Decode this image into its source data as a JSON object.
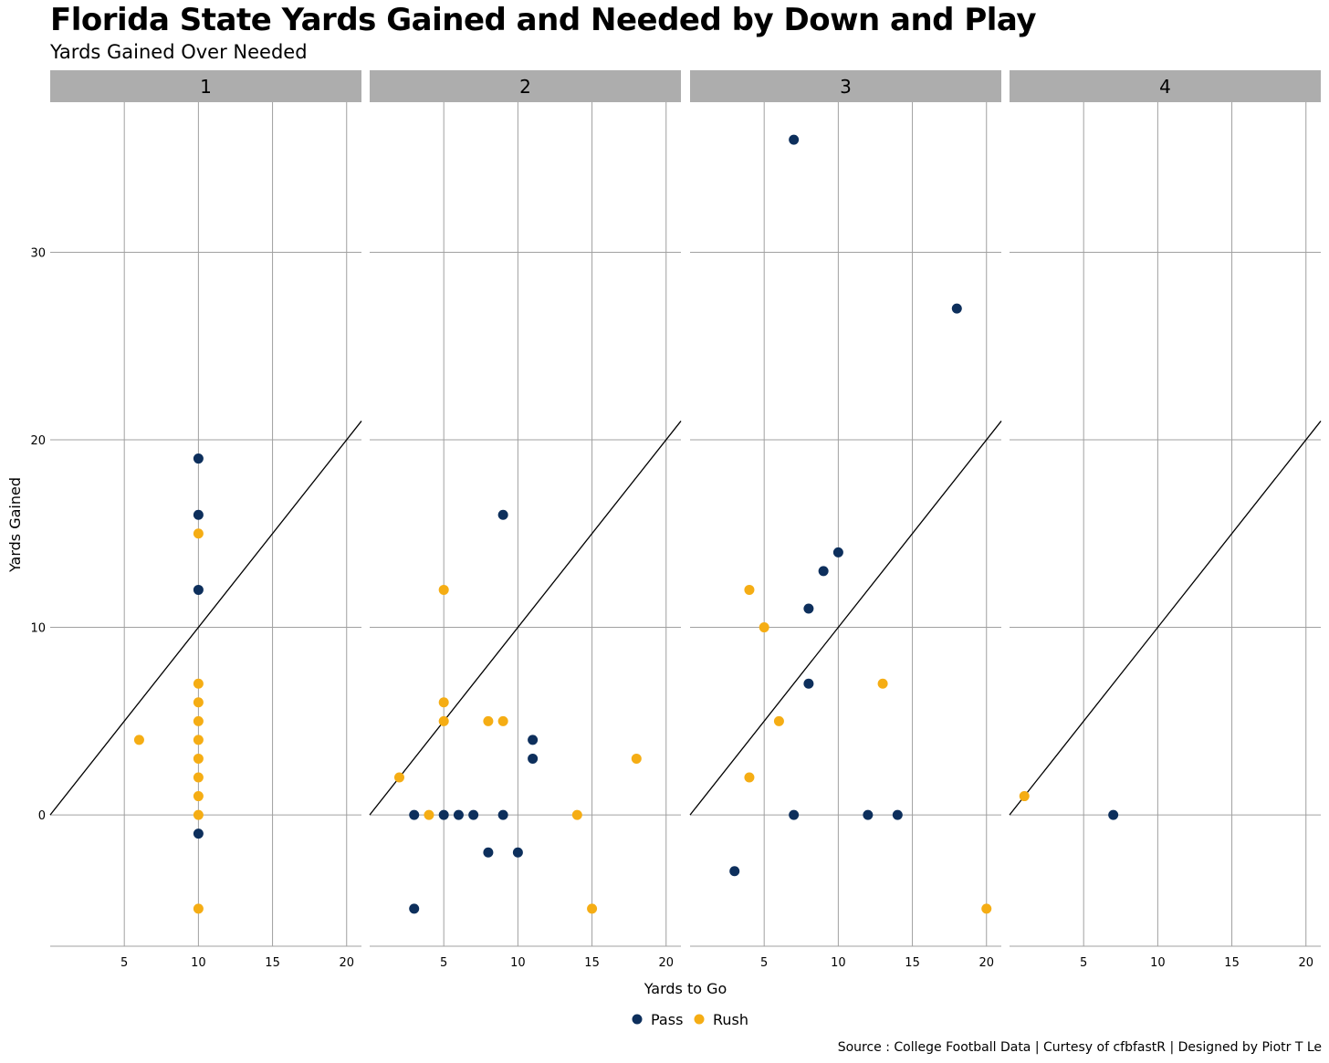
{
  "title": "Florida State Yards Gained and Needed by Down and Play",
  "subtitle": "Yards Gained Over Needed",
  "caption": "Source : College Football Data | Curtesy of cfbfastR | Designed by Piotr T Le",
  "chart_data": {
    "type": "scatter",
    "xlabel": "Yards to Go",
    "ylabel": "Yards Gained",
    "xlim": [
      0,
      21
    ],
    "ylim": [
      -7,
      38
    ],
    "x_ticks": [
      5,
      10,
      15,
      20
    ],
    "y_ticks": [
      0,
      10,
      20,
      30
    ],
    "grid": true,
    "reference_line": "y = x",
    "legend_position": "bottom",
    "colors": {
      "Pass": "#0d2f5c",
      "Rush": "#f5ad14"
    },
    "series": [
      {
        "name": "Pass",
        "color": "#0d2f5c"
      },
      {
        "name": "Rush",
        "color": "#f5ad14"
      }
    ],
    "panels": [
      {
        "label": "1",
        "points": [
          {
            "x": 10,
            "y": 19,
            "play": "Pass"
          },
          {
            "x": 10,
            "y": 16,
            "play": "Pass"
          },
          {
            "x": 10,
            "y": 12,
            "play": "Pass"
          },
          {
            "x": 10,
            "y": -1,
            "play": "Pass"
          },
          {
            "x": 10,
            "y": 15,
            "play": "Rush"
          },
          {
            "x": 10,
            "y": 7,
            "play": "Rush"
          },
          {
            "x": 10,
            "y": 6,
            "play": "Rush"
          },
          {
            "x": 10,
            "y": 5,
            "play": "Rush"
          },
          {
            "x": 10,
            "y": 4,
            "play": "Rush"
          },
          {
            "x": 10,
            "y": 3,
            "play": "Rush"
          },
          {
            "x": 10,
            "y": 2,
            "play": "Rush"
          },
          {
            "x": 10,
            "y": 1,
            "play": "Rush"
          },
          {
            "x": 10,
            "y": 0,
            "play": "Rush"
          },
          {
            "x": 10,
            "y": -5,
            "play": "Rush"
          },
          {
            "x": 6,
            "y": 4,
            "play": "Rush"
          }
        ]
      },
      {
        "label": "2",
        "points": [
          {
            "x": 9,
            "y": 16,
            "play": "Pass"
          },
          {
            "x": 11,
            "y": 4,
            "play": "Pass"
          },
          {
            "x": 11,
            "y": 3,
            "play": "Pass"
          },
          {
            "x": 3,
            "y": 0,
            "play": "Pass"
          },
          {
            "x": 5,
            "y": 0,
            "play": "Pass"
          },
          {
            "x": 6,
            "y": 0,
            "play": "Pass"
          },
          {
            "x": 7,
            "y": 0,
            "play": "Pass"
          },
          {
            "x": 9,
            "y": 0,
            "play": "Pass"
          },
          {
            "x": 8,
            "y": -2,
            "play": "Pass"
          },
          {
            "x": 10,
            "y": -2,
            "play": "Pass"
          },
          {
            "x": 3,
            "y": -5,
            "play": "Pass"
          },
          {
            "x": 5,
            "y": 12,
            "play": "Rush"
          },
          {
            "x": 5,
            "y": 6,
            "play": "Rush"
          },
          {
            "x": 5,
            "y": 5,
            "play": "Rush"
          },
          {
            "x": 8,
            "y": 5,
            "play": "Rush"
          },
          {
            "x": 9,
            "y": 5,
            "play": "Rush"
          },
          {
            "x": 18,
            "y": 3,
            "play": "Rush"
          },
          {
            "x": 2,
            "y": 2,
            "play": "Rush"
          },
          {
            "x": 4,
            "y": 0,
            "play": "Rush"
          },
          {
            "x": 14,
            "y": 0,
            "play": "Rush"
          },
          {
            "x": 15,
            "y": -5,
            "play": "Rush"
          }
        ]
      },
      {
        "label": "3",
        "points": [
          {
            "x": 7,
            "y": 36,
            "play": "Pass"
          },
          {
            "x": 18,
            "y": 27,
            "play": "Pass"
          },
          {
            "x": 10,
            "y": 14,
            "play": "Pass"
          },
          {
            "x": 9,
            "y": 13,
            "play": "Pass"
          },
          {
            "x": 8,
            "y": 11,
            "play": "Pass"
          },
          {
            "x": 8,
            "y": 7,
            "play": "Pass"
          },
          {
            "x": 7,
            "y": 0,
            "play": "Pass"
          },
          {
            "x": 12,
            "y": 0,
            "play": "Pass"
          },
          {
            "x": 14,
            "y": 0,
            "play": "Pass"
          },
          {
            "x": 3,
            "y": -3,
            "play": "Pass"
          },
          {
            "x": 4,
            "y": 12,
            "play": "Rush"
          },
          {
            "x": 5,
            "y": 10,
            "play": "Rush"
          },
          {
            "x": 13,
            "y": 7,
            "play": "Rush"
          },
          {
            "x": 6,
            "y": 5,
            "play": "Rush"
          },
          {
            "x": 4,
            "y": 2,
            "play": "Rush"
          },
          {
            "x": 20,
            "y": -5,
            "play": "Rush"
          }
        ]
      },
      {
        "label": "4",
        "points": [
          {
            "x": 7,
            "y": 0,
            "play": "Pass"
          },
          {
            "x": 1,
            "y": 1,
            "play": "Rush"
          }
        ]
      }
    ]
  }
}
